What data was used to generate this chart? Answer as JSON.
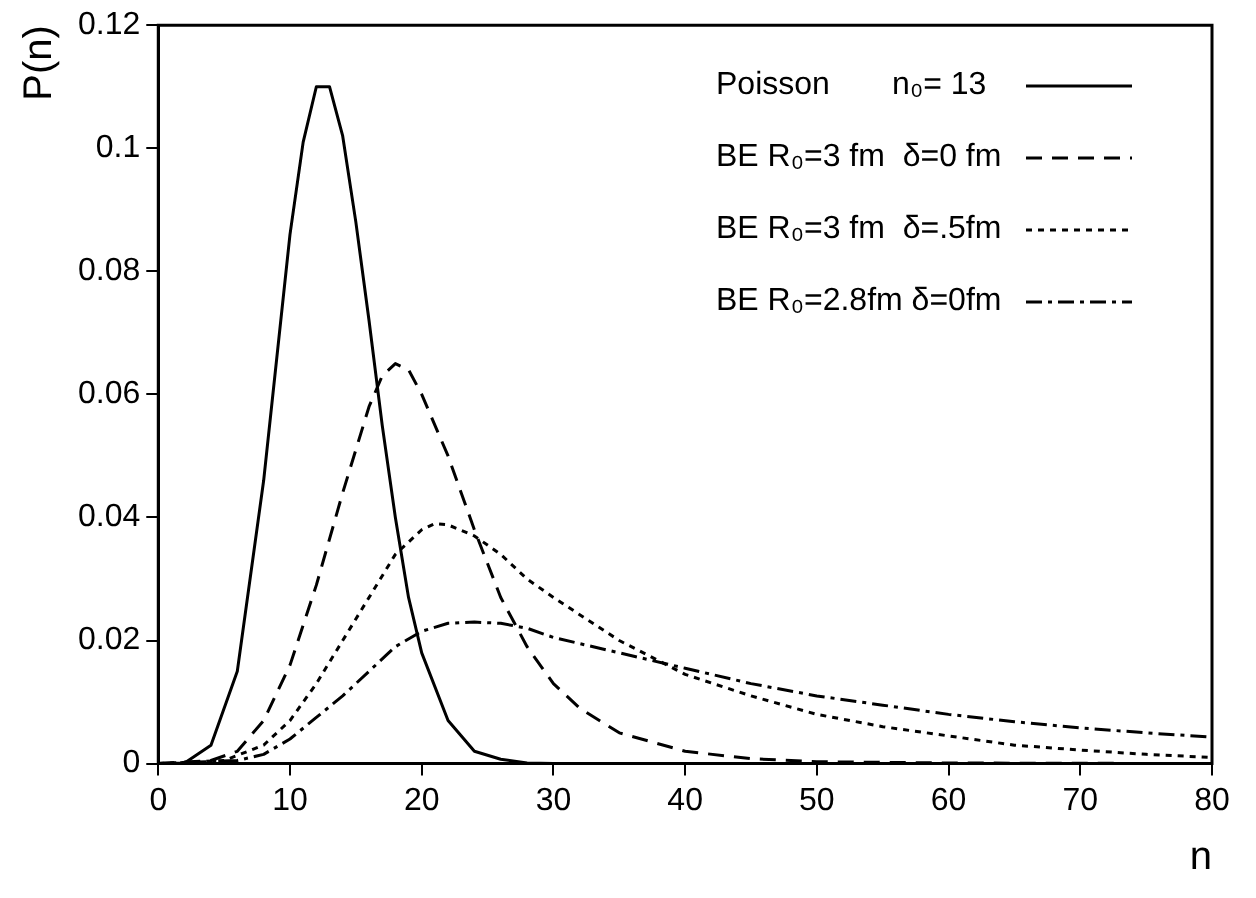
{
  "chart_data": {
    "type": "line",
    "xlabel": "n",
    "ylabel": "P(n)",
    "xlim": [
      0,
      80
    ],
    "ylim": [
      0,
      0.12
    ],
    "xticks": [
      0,
      10,
      20,
      30,
      40,
      50,
      60,
      70,
      80
    ],
    "yticks": [
      0,
      0.02,
      0.04,
      0.06,
      0.08,
      0.1,
      0.12
    ],
    "grid": false,
    "legend": "top right",
    "marker": "none",
    "series": [
      {
        "name": "Poisson       n₀= 13",
        "color": "#000000",
        "line_style": "solid",
        "x": [
          0,
          2,
          4,
          6,
          8,
          10,
          11,
          12,
          13,
          14,
          15,
          16,
          17,
          18,
          19,
          20,
          22,
          24,
          26,
          28,
          30,
          40,
          50,
          60,
          70,
          80
        ],
        "values": [
          0,
          0.0001,
          0.003,
          0.015,
          0.046,
          0.086,
          0.101,
          0.11,
          0.11,
          0.102,
          0.088,
          0.072,
          0.055,
          0.04,
          0.027,
          0.018,
          0.007,
          0.002,
          0.0007,
          0.0001,
          0,
          0,
          0,
          0,
          0,
          0
        ]
      },
      {
        "name": "BE R₀=3 fm  δ=0 fm",
        "color": "#000000",
        "line_style": "dashed",
        "x": [
          0,
          4,
          6,
          8,
          10,
          12,
          14,
          16,
          17,
          18,
          19,
          20,
          22,
          24,
          26,
          28,
          30,
          32,
          35,
          40,
          45,
          50,
          60,
          80
        ],
        "values": [
          0,
          0.0005,
          0.002,
          0.007,
          0.016,
          0.029,
          0.044,
          0.058,
          0.063,
          0.065,
          0.064,
          0.06,
          0.05,
          0.038,
          0.027,
          0.019,
          0.013,
          0.009,
          0.005,
          0.002,
          0.0008,
          0.0003,
          0.0001,
          0
        ]
      },
      {
        "name": "BE R₀=3 fm  δ=.5fm",
        "color": "#000000",
        "line_style": "dotted",
        "x": [
          0,
          5,
          8,
          10,
          12,
          14,
          16,
          18,
          20,
          21,
          22,
          24,
          26,
          28,
          30,
          35,
          40,
          45,
          50,
          55,
          60,
          65,
          70,
          75,
          80
        ],
        "values": [
          0,
          0.0005,
          0.003,
          0.007,
          0.013,
          0.02,
          0.027,
          0.034,
          0.038,
          0.039,
          0.0388,
          0.037,
          0.034,
          0.03,
          0.027,
          0.02,
          0.0145,
          0.011,
          0.008,
          0.006,
          0.0045,
          0.003,
          0.0022,
          0.0015,
          0.001
        ]
      },
      {
        "name": "BE R₀=2.8fm δ=0fm",
        "color": "#000000",
        "line_style": "dashdot",
        "x": [
          0,
          6,
          8,
          10,
          12,
          14,
          16,
          18,
          20,
          22,
          24,
          26,
          28,
          30,
          35,
          40,
          45,
          50,
          55,
          60,
          65,
          70,
          75,
          80
        ],
        "values": [
          0,
          0.0005,
          0.0015,
          0.004,
          0.0075,
          0.011,
          0.015,
          0.019,
          0.0215,
          0.0228,
          0.023,
          0.0228,
          0.022,
          0.0205,
          0.018,
          0.0155,
          0.013,
          0.011,
          0.0095,
          0.008,
          0.0068,
          0.0058,
          0.005,
          0.0043
        ]
      }
    ]
  }
}
